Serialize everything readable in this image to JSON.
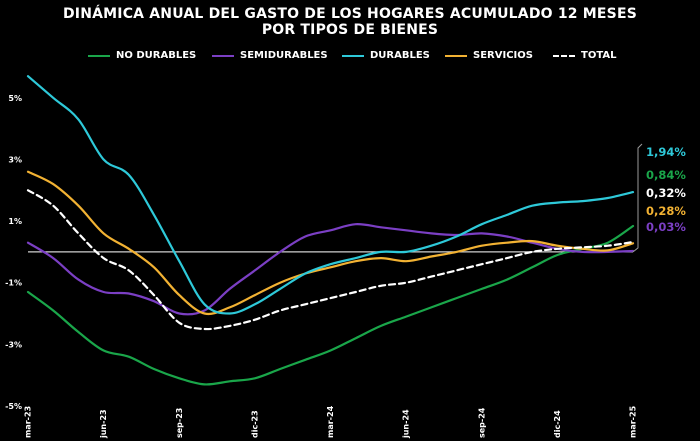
{
  "chart_data": {
    "type": "line",
    "title_line1": "DINÁMICA ANUAL DEL GASTO DE LOS HOGARES ACUMULADO 12 MESES",
    "title_line2": "POR TIPOS DE BIENES",
    "ylim": [
      -5,
      6
    ],
    "y_ticks": [
      {
        "value": 5,
        "label": "5%"
      },
      {
        "value": 3,
        "label": "3%"
      },
      {
        "value": 1,
        "label": "1%"
      },
      {
        "value": -1,
        "label": "-1%"
      },
      {
        "value": -3,
        "label": "-3%"
      },
      {
        "value": -5,
        "label": "-5%"
      }
    ],
    "x_ticks": [
      {
        "index": 0,
        "label": "mar-23"
      },
      {
        "index": 3,
        "label": "jun-23"
      },
      {
        "index": 6,
        "label": "sep-23"
      },
      {
        "index": 9,
        "label": "dic-23"
      },
      {
        "index": 12,
        "label": "mar-24"
      },
      {
        "index": 15,
        "label": "jun-24"
      },
      {
        "index": 18,
        "label": "sep-24"
      },
      {
        "index": 21,
        "label": "dic-24"
      },
      {
        "index": 24,
        "label": "mar-25"
      }
    ],
    "grid": false,
    "legend_position": "top",
    "series": [
      {
        "name": "NO DURABLES",
        "color": "#1aa64a",
        "dash": false,
        "values": [
          -1.3,
          -1.9,
          -2.6,
          -3.2,
          -3.4,
          -3.8,
          -4.1,
          -4.3,
          -4.2,
          -4.1,
          -3.8,
          -3.5,
          -3.2,
          -2.8,
          -2.4,
          -2.1,
          -1.8,
          -1.5,
          -1.2,
          -0.9,
          -0.5,
          -0.1,
          0.1,
          0.3,
          0.84
        ]
      },
      {
        "name": "SEMIDURABLES",
        "color": "#7b3fc4",
        "dash": false,
        "values": [
          0.3,
          -0.2,
          -0.9,
          -1.3,
          -1.35,
          -1.6,
          -2.0,
          -1.9,
          -1.2,
          -0.6,
          0.0,
          0.5,
          0.7,
          0.9,
          0.8,
          0.7,
          0.6,
          0.55,
          0.6,
          0.5,
          0.3,
          0.1,
          0.0,
          0.0,
          0.03
        ]
      },
      {
        "name": "DURABLES",
        "color": "#2ec9d9",
        "dash": false,
        "values": [
          5.7,
          5.0,
          4.3,
          3.0,
          2.5,
          1.2,
          -0.3,
          -1.7,
          -2.0,
          -1.7,
          -1.2,
          -0.7,
          -0.4,
          -0.2,
          0.0,
          0.0,
          0.2,
          0.5,
          0.9,
          1.2,
          1.5,
          1.6,
          1.65,
          1.75,
          1.94
        ]
      },
      {
        "name": "SERVICIOS",
        "color": "#f2b233",
        "dash": false,
        "values": [
          2.6,
          2.2,
          1.5,
          0.6,
          0.1,
          -0.5,
          -1.4,
          -2.0,
          -1.8,
          -1.4,
          -1.0,
          -0.7,
          -0.5,
          -0.3,
          -0.2,
          -0.3,
          -0.15,
          0.0,
          0.2,
          0.3,
          0.35,
          0.2,
          0.1,
          0.05,
          0.28
        ]
      },
      {
        "name": "TOTAL",
        "color": "#ffffff",
        "dash": true,
        "values": [
          2.0,
          1.5,
          0.6,
          -0.2,
          -0.6,
          -1.4,
          -2.3,
          -2.5,
          -2.4,
          -2.2,
          -1.9,
          -1.7,
          -1.5,
          -1.3,
          -1.1,
          -1.0,
          -0.8,
          -0.6,
          -0.4,
          -0.2,
          0.0,
          0.1,
          0.15,
          0.2,
          0.32
        ]
      }
    ],
    "end_labels": [
      {
        "text": "1,94%",
        "color": "#2ec9d9"
      },
      {
        "text": "0,84%",
        "color": "#1aa64a"
      },
      {
        "text": "0,32%",
        "color": "#ffffff"
      },
      {
        "text": "0,28%",
        "color": "#f2b233"
      },
      {
        "text": "0,03%",
        "color": "#7b3fc4"
      }
    ]
  }
}
